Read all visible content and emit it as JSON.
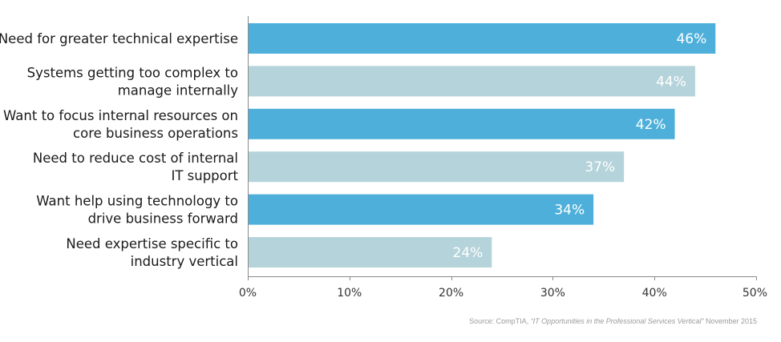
{
  "chart_data": {
    "type": "bar",
    "orientation": "horizontal",
    "categories": [
      [
        "Need for greater technical expertise"
      ],
      [
        "Systems getting too complex to",
        "manage internally"
      ],
      [
        "Want to focus internal resources on",
        "core business operations"
      ],
      [
        "Need to reduce cost of internal",
        "IT support"
      ],
      [
        "Want help using technology to",
        "drive business forward"
      ],
      [
        "Need expertise specific to",
        "industry vertical"
      ]
    ],
    "values": [
      46,
      44,
      42,
      37,
      34,
      24
    ],
    "value_labels": [
      "46%",
      "44%",
      "42%",
      "37%",
      "34%",
      "24%"
    ],
    "bar_colors": [
      "#4eb0da",
      "#b5d3da",
      "#4eb0da",
      "#b5d3da",
      "#4eb0da",
      "#b5d3da"
    ],
    "xlim": [
      0,
      50
    ],
    "xticks": [
      0,
      10,
      20,
      30,
      40,
      50
    ],
    "xtick_labels": [
      "0%",
      "10%",
      "20%",
      "30%",
      "40%",
      "50%"
    ],
    "title": "",
    "xlabel": "",
    "ylabel": "",
    "grid": false,
    "legend": "none"
  },
  "source": {
    "prefix": "Source: CompTIA, ",
    "title": "“IT Opportunities in the Professional Services Vertical”",
    "suffix": " November 2015"
  }
}
